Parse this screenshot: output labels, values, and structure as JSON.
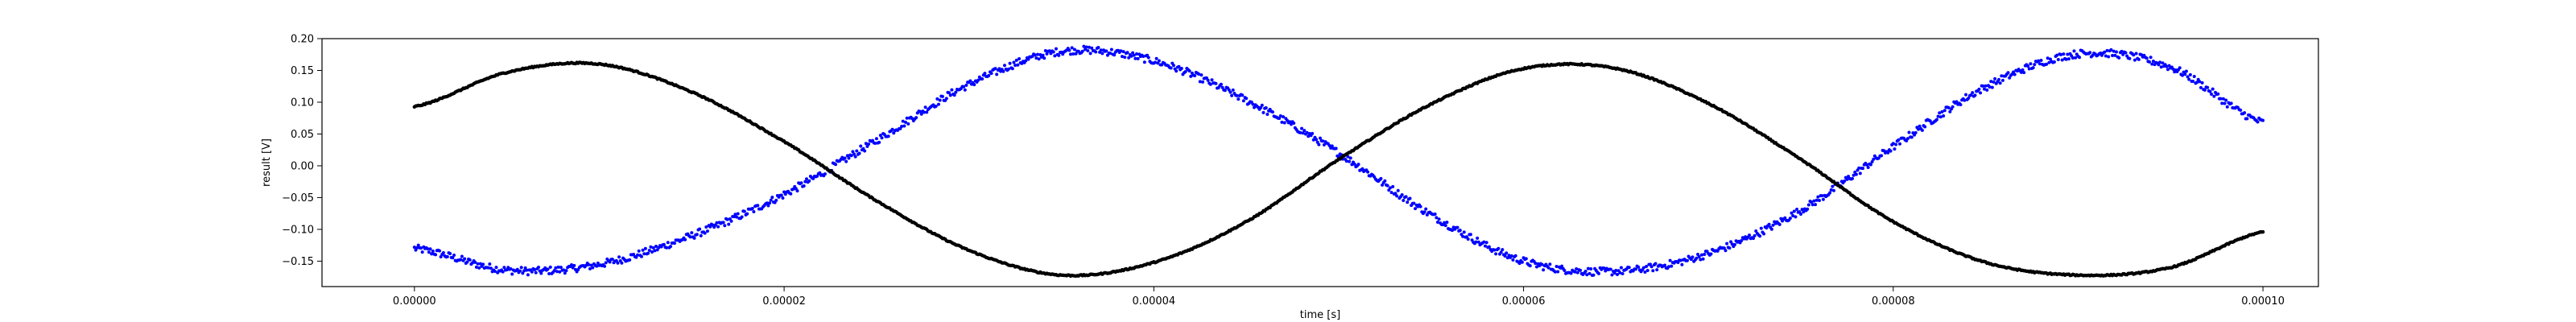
{
  "chart_data": {
    "type": "scatter",
    "title": "",
    "xlabel": "time [s]",
    "ylabel": "result [V]",
    "xlim": [
      -5e-06,
      0.000103
    ],
    "ylim": [
      -0.19,
      0.2
    ],
    "x_ticks": [
      0.0,
      2e-05,
      4e-05,
      6e-05,
      8e-05,
      0.0001
    ],
    "x_tick_labels": [
      "0.00000",
      "0.00002",
      "0.00004",
      "0.00006",
      "0.00008",
      "0.00010"
    ],
    "y_ticks": [
      -0.15,
      -0.1,
      -0.05,
      0.0,
      0.05,
      0.1,
      0.15,
      0.2
    ],
    "y_tick_labels": [
      "−0.15",
      "−0.10",
      "−0.05",
      "0.00",
      "0.05",
      "0.10",
      "0.15",
      "0.20"
    ],
    "grid": false,
    "legend": "none",
    "series": [
      {
        "color": "#0000ff",
        "marker": "dot",
        "noisy": true,
        "x": [
          0.0,
          5e-06,
          1e-05,
          1.5e-05,
          2e-05,
          2.5e-05,
          3e-05,
          3.5e-05,
          4e-05,
          4.5e-05,
          5e-05,
          5.5e-05,
          6e-05,
          6.5e-05,
          7e-05,
          7.5e-05,
          8e-05,
          8.5e-05,
          9e-05,
          9.5e-05,
          0.0001
        ],
        "y": [
          -0.13,
          -0.164,
          -0.155,
          -0.11,
          -0.045,
          0.04,
          0.128,
          0.18,
          0.165,
          0.103,
          0.02,
          -0.077,
          -0.15,
          -0.166,
          -0.138,
          -0.07,
          0.03,
          0.124,
          0.176,
          0.155,
          0.068
        ]
      },
      {
        "color": "#000000",
        "marker": "dot",
        "noisy": false,
        "x": [
          0.0,
          5e-06,
          1e-05,
          1.5e-05,
          2e-05,
          2.5e-05,
          3e-05,
          3.5e-05,
          4e-05,
          4.5e-05,
          5e-05,
          5.5e-05,
          6e-05,
          6.5e-05,
          7e-05,
          7.5e-05,
          8e-05,
          8.5e-05,
          9e-05,
          9.5e-05,
          0.0001
        ],
        "y": [
          0.093,
          0.147,
          0.16,
          0.116,
          0.038,
          -0.055,
          -0.133,
          -0.172,
          -0.152,
          -0.088,
          0.01,
          0.097,
          0.153,
          0.153,
          0.098,
          0.01,
          -0.088,
          -0.152,
          -0.172,
          -0.16,
          -0.104
        ]
      }
    ]
  }
}
